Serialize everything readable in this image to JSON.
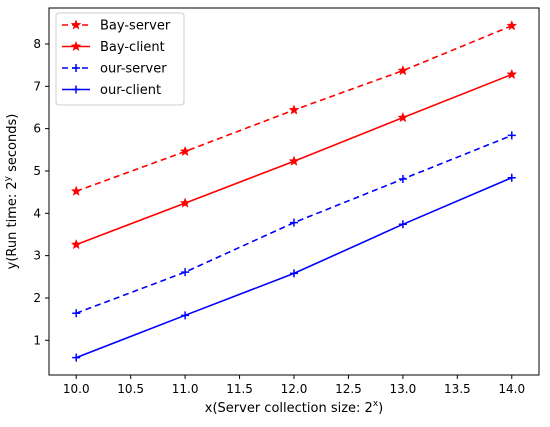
{
  "chart_data": {
    "type": "line",
    "xlabel": "x(Server collection size: 2",
    "xlabel_sup": "x",
    "xlabel_end": ")",
    "ylabel": "y(Run time: 2",
    "ylabel_sup": "y",
    "ylabel_end": " seconds)",
    "x": [
      10.0,
      11.0,
      12.0,
      13.0,
      14.0
    ],
    "xlim": [
      9.75,
      14.25
    ],
    "ylim": [
      0.18,
      8.85
    ],
    "xticks": [
      "10.0",
      "10.5",
      "11.0",
      "11.5",
      "12.0",
      "12.5",
      "13.0",
      "13.5",
      "14.0"
    ],
    "xtick_values": [
      10.0,
      10.5,
      11.0,
      11.5,
      12.0,
      12.5,
      13.0,
      13.5,
      14.0
    ],
    "yticks": [
      "1",
      "2",
      "3",
      "4",
      "5",
      "6",
      "7",
      "8"
    ],
    "ytick_values": [
      1,
      2,
      3,
      4,
      5,
      6,
      7,
      8
    ],
    "grid": false,
    "legend_position": "top-left",
    "series": [
      {
        "name": "Bay-server",
        "values": [
          4.52,
          5.46,
          6.44,
          7.37,
          8.43
        ],
        "color": "#ff0000",
        "dashed": true,
        "marker": "star"
      },
      {
        "name": "Bay-client",
        "values": [
          3.26,
          4.24,
          5.23,
          6.26,
          7.28
        ],
        "color": "#ff0000",
        "dashed": false,
        "marker": "star"
      },
      {
        "name": "our-server",
        "values": [
          1.64,
          2.61,
          3.78,
          4.81,
          5.84
        ],
        "color": "#0000ff",
        "dashed": true,
        "marker": "plus"
      },
      {
        "name": "our-client",
        "values": [
          0.59,
          1.59,
          2.58,
          3.74,
          4.84
        ],
        "color": "#0000ff",
        "dashed": false,
        "marker": "plus"
      }
    ]
  }
}
